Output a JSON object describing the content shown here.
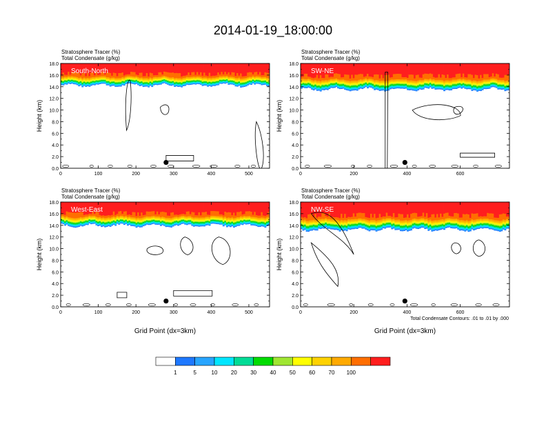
{
  "title": "2014-01-19_18:00:00",
  "colors": {
    "levels": [
      "#ffffff",
      "#1e78ff",
      "#28a5ff",
      "#00e6ff",
      "#00dc96",
      "#00dc00",
      "#a0e632",
      "#ffff00",
      "#ffd200",
      "#ffaa00",
      "#ff6e00",
      "#ff1e1e"
    ],
    "contour": "#000000"
  },
  "colorbar": {
    "labels": [
      "1",
      "5",
      "10",
      "20",
      "30",
      "40",
      "50",
      "60",
      "70",
      "100"
    ]
  },
  "footnote": "Total Condensate Contours: .01 to .01 by .000",
  "chart_data": [
    {
      "type": "heatmap",
      "panel_label": "South-North",
      "title_line1": "Stratosphere Tracer   (%)",
      "title_line2": "Total Condensate   (g/kg)",
      "ylabel": "Height (km)",
      "xlabel": "",
      "xlim": [
        0,
        555
      ],
      "ylim": [
        0,
        18
      ],
      "xticks": [
        "0",
        "100",
        "200",
        "300",
        "400",
        "500"
      ],
      "xtick_values": [
        0,
        100,
        200,
        300,
        400,
        500
      ],
      "yticks": [
        "0.0",
        "2.0",
        "4.0",
        "6.0",
        "8.0",
        "10.0",
        "12.0",
        "14.0",
        "16.0",
        "18.0"
      ],
      "tracer_top_km": 18.0,
      "tracer_base_km": 14.3,
      "marker_x": 280,
      "marker_y": 1.0
    },
    {
      "type": "heatmap",
      "panel_label": "SW-NE",
      "title_line1": "Stratosphere Tracer   (%)",
      "title_line2": "Total Condensate   (g/kg)",
      "ylabel": "Height (km)",
      "xlabel": "",
      "xlim": [
        0,
        785
      ],
      "ylim": [
        0,
        18
      ],
      "xticks": [
        "0",
        "200",
        "400",
        "600"
      ],
      "xtick_values": [
        0,
        200,
        400,
        600
      ],
      "yticks": [
        "0.0",
        "2.0",
        "4.0",
        "6.0",
        "8.0",
        "10.0",
        "12.0",
        "14.0",
        "16.0",
        "18.0"
      ],
      "tracer_top_km": 18.0,
      "tracer_base_km": 13.6,
      "marker_x": 392,
      "marker_y": 1.0
    },
    {
      "type": "heatmap",
      "panel_label": "West-East",
      "title_line1": "Stratosphere Tracer   (%)",
      "title_line2": "Total Condensate   (g/kg)",
      "ylabel": "Height (km)",
      "xlabel": "Grid Point (dx=3km)",
      "xlim": [
        0,
        555
      ],
      "ylim": [
        0,
        18
      ],
      "xticks": [
        "0",
        "100",
        "200",
        "300",
        "400",
        "500"
      ],
      "xtick_values": [
        0,
        100,
        200,
        300,
        400,
        500
      ],
      "yticks": [
        "0.0",
        "2.0",
        "4.0",
        "6.0",
        "8.0",
        "10.0",
        "12.0",
        "14.0",
        "16.0",
        "18.0"
      ],
      "tracer_top_km": 18.0,
      "tracer_base_km": 14.0,
      "marker_x": 280,
      "marker_y": 1.0
    },
    {
      "type": "heatmap",
      "panel_label": "NW-SE",
      "title_line1": "Stratosphere Tracer   (%)",
      "title_line2": "Total Condensate   (g/kg)",
      "ylabel": "Height (km)",
      "xlabel": "Grid Point (dx=3km)",
      "xlim": [
        0,
        785
      ],
      "ylim": [
        0,
        18
      ],
      "xticks": [
        "0",
        "200",
        "400",
        "600"
      ],
      "xtick_values": [
        0,
        200,
        400,
        600
      ],
      "yticks": [
        "0.0",
        "2.0",
        "4.0",
        "6.0",
        "8.0",
        "10.0",
        "12.0",
        "14.0",
        "16.0",
        "18.0"
      ],
      "tracer_top_km": 18.0,
      "tracer_base_km": 13.3,
      "marker_x": 392,
      "marker_y": 1.0
    }
  ]
}
